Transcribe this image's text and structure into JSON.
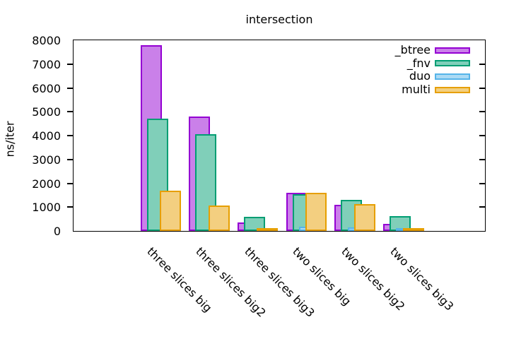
{
  "title": "intersection",
  "ylabel": "ns/iter",
  "chart_data": {
    "type": "bar",
    "title": "intersection",
    "xlabel": "",
    "ylabel": "ns/iter",
    "ylim": [
      0,
      8000
    ],
    "ytick_step": 1000,
    "ytick_labels": [
      "0",
      "1000",
      "2000",
      "3000",
      "4000",
      "5000",
      "6000",
      "7000",
      "8000"
    ],
    "grid": false,
    "legend_position": "top-right-inside",
    "bar_style": "overlapping-cluster",
    "categories": [
      "three slices big",
      "three slices big2",
      "three slices big3",
      "two slices big",
      "two slices big2",
      "two slices big3"
    ],
    "series": [
      {
        "name": "_btree",
        "fill": "#ca80e9",
        "border": "#9400d3",
        "values": [
          7800,
          4800,
          360,
          1590,
          1090,
          310
        ]
      },
      {
        "name": "_fnv",
        "fill": "#80cfb9",
        "border": "#009e73",
        "values": [
          4700,
          4070,
          600,
          1530,
          1290,
          620
        ]
      },
      {
        "name": "duo",
        "fill": "#abdaf4",
        "border": "#56b4e9",
        "values": [
          25,
          25,
          15,
          185,
          150,
          70
        ]
      },
      {
        "name": "multi",
        "fill": "#f3cf80",
        "border": "#e69f00",
        "values": [
          1700,
          1060,
          120,
          1610,
          1140,
          125
        ]
      }
    ],
    "axis_color": "#000000",
    "text_color": "#000000",
    "background": "#ffffff"
  }
}
